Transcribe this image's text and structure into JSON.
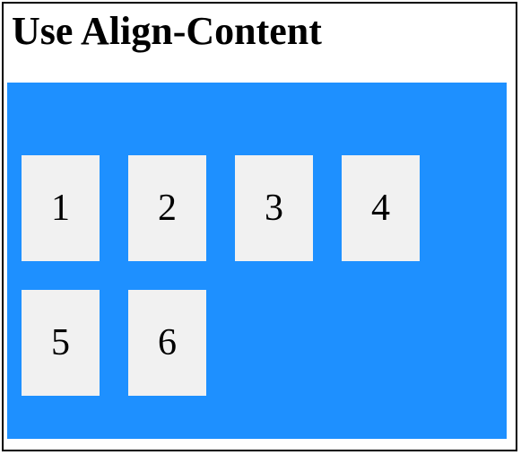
{
  "page": {
    "title": "Use Align-Content"
  },
  "colors": {
    "container_background": "#1e90ff",
    "item_background": "#f1f1f1",
    "border": "#000000"
  },
  "items": [
    "1",
    "2",
    "3",
    "4",
    "5",
    "6"
  ]
}
